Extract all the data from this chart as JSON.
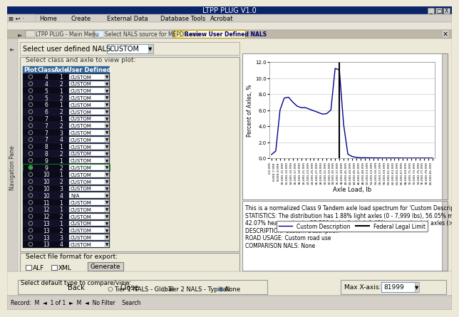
{
  "app_title": "LTPP PLUG V1.0",
  "tab1": "LTPP PLUG - Main Menu",
  "tab2": "Select NALS source for MEPDG use",
  "tab3": "Review User Defined NALS",
  "select_nals_label": "Select user defined NALS:",
  "nals_value": "CUSTOM",
  "frame1_title": "Select class and axle to view plot:",
  "table_headers": [
    "Plot",
    "Class",
    "Axle",
    "User Defined"
  ],
  "table_rows": [
    [
      4,
      1,
      "CUSTOM"
    ],
    [
      4,
      2,
      "CUSTOM"
    ],
    [
      5,
      1,
      "CUSTOM"
    ],
    [
      5,
      2,
      "CUSTOM"
    ],
    [
      6,
      1,
      "CUSTOM"
    ],
    [
      6,
      2,
      "CUSTOM"
    ],
    [
      7,
      1,
      "CUSTOM"
    ],
    [
      7,
      2,
      "CUSTOM"
    ],
    [
      7,
      3,
      "CUSTOM"
    ],
    [
      7,
      4,
      "CUSTOM"
    ],
    [
      8,
      1,
      "CUSTOM"
    ],
    [
      8,
      2,
      "CUSTOM"
    ],
    [
      9,
      1,
      "CUSTOM"
    ],
    [
      9,
      2,
      "CUSTOM"
    ],
    [
      10,
      1,
      "CUSTOM"
    ],
    [
      10,
      2,
      "CUSTOM"
    ],
    [
      10,
      3,
      "CUSTOM"
    ],
    [
      10,
      4,
      "N/A"
    ],
    [
      11,
      1,
      "CUSTOM"
    ],
    [
      12,
      1,
      "CUSTOM"
    ],
    [
      12,
      2,
      "CUSTOM"
    ],
    [
      13,
      1,
      "CUSTOM"
    ],
    [
      13,
      2,
      "CUSTOM"
    ],
    [
      13,
      3,
      "CUSTOM"
    ],
    [
      13,
      4,
      "CUSTOM"
    ]
  ],
  "selected_row": 13,
  "generate_btn": "Generate",
  "back_btn": "Back",
  "close_btn": "Close",
  "ylabel": "Percent of Axles, %",
  "xlabel": "Axle Load, lb",
  "ylim": [
    0.0,
    12.0
  ],
  "yticks": [
    0.0,
    2.0,
    4.0,
    6.0,
    8.0,
    10.0,
    12.0
  ],
  "x_labels": [
    "0-5,999",
    "6,000-7,999",
    "8,000-9,999",
    "10,000-11,999",
    "12,000-13,999",
    "14,000-15,999",
    "16,000-17,999",
    "18,000-19,999",
    "20,000-21,999",
    "22,000-23,999",
    "24,000-25,999",
    "26,000-27,999",
    "28,000-29,999",
    "30,000-31,999",
    "32,000-33,999",
    "34,000-35,999",
    "36,000-37,999",
    "38,000-39,999",
    "40,000-41,999",
    "42,000-43,999",
    "44,000-45,999",
    "46,000-47,999",
    "48,000-49,999",
    "50,000-51,999",
    "52,000-53,999",
    "54,000-55,999",
    "56,000-57,999",
    "58,000-59,999",
    "60,000-61,999",
    "62,000-63,999",
    "64,000-65,999",
    "66,000-67,999",
    "68,000-69,999",
    "70,000-71,999",
    "72,000-73,999",
    "74,000-75,999",
    "76,000-77,999",
    "78,000-79,999",
    "80,000-81,999"
  ],
  "y_data": [
    0.45,
    0.9,
    6.0,
    7.5,
    7.6,
    7.0,
    6.5,
    6.3,
    6.3,
    6.1,
    5.9,
    5.7,
    5.5,
    5.55,
    6.0,
    11.2,
    11.0,
    4.2,
    0.5,
    0.2,
    0.1,
    0.05,
    0.05,
    0.04,
    0.03,
    0.03,
    0.02,
    0.02,
    0.02,
    0.02,
    0.02,
    0.01,
    0.01,
    0.01,
    0.01,
    0.01,
    0.01,
    0.01,
    0.01
  ],
  "federal_legal_limit_index": 16,
  "line_color": "#00008B",
  "limit_color": "#000000",
  "legend1": "Custom Description",
  "legend2": "Federal Legal Limit",
  "desc_line1": "This is a normalized Class 9 Tandem axle load spectrum for 'Custom Description'.",
  "desc_line2": "STATISTICS: The distribution has 1.88% light axles (0 - 7,999 lbs), 56.05% moderately heavy axles (8,000 - 25,500 lbs), and",
  "desc_line3": "42.07% heavy axles (> 25,500 lbs), of which 1.45% are overloaded axles (> 34,000 lbs).",
  "desc_line4": "DESCRIPTION: Custom Description",
  "desc_line5": "ROAD USAGE: Custom road use",
  "desc_line6": "COMPARISON NALS: None",
  "bottom_frame1_title": "Select default type to compare/view:",
  "radio1": "Tier 1 NALS - Global",
  "radio2": "Tier 2 NALS - Typical",
  "radio3": "None",
  "selected_radio": "None",
  "max_x_label": "Max X-axis:",
  "max_x_value": "81999",
  "bg_color": "#ece9d8",
  "nav_pane_label": "Navigation Pane",
  "titlebar_color": "#0a246a",
  "toolbar_bg": "#d4d0c8"
}
